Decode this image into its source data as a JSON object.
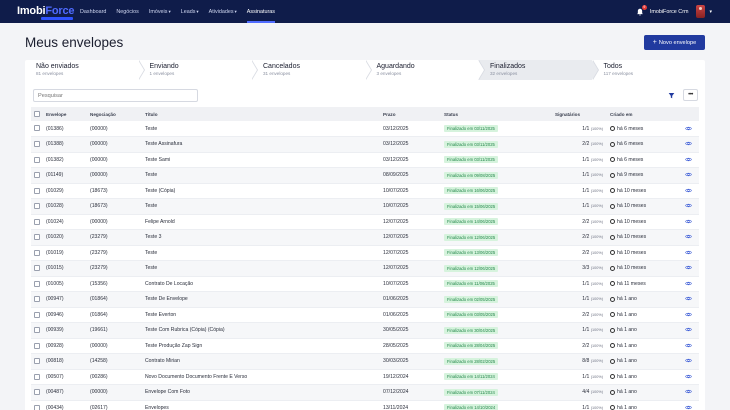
{
  "brand": {
    "name_a": "Imobi",
    "name_b": "Force"
  },
  "nav": [
    {
      "label": "Dashboard",
      "has_caret": false,
      "active": false
    },
    {
      "label": "Negócios",
      "has_caret": false,
      "active": false
    },
    {
      "label": "Imóveis",
      "has_caret": true,
      "active": false
    },
    {
      "label": "Leads",
      "has_caret": true,
      "active": false
    },
    {
      "label": "Atividades",
      "has_caret": true,
      "active": false
    },
    {
      "label": "Assinaturas",
      "has_caret": false,
      "active": true
    }
  ],
  "user": {
    "name": "ImobiForce Crm",
    "notification_count": "9"
  },
  "page": {
    "title": "Meus envelopes",
    "new_button": "Novo envelope"
  },
  "tabs": [
    {
      "label": "Não enviados",
      "count": "81 envelopes"
    },
    {
      "label": "Enviando",
      "count": "1 envelopes"
    },
    {
      "label": "Cancelados",
      "count": "31 envelopes"
    },
    {
      "label": "Aguardando",
      "count": "3 envelopes"
    },
    {
      "label": "Finalizados",
      "count": "32 envelopes"
    },
    {
      "label": "Todos",
      "count": "117 envelopes"
    }
  ],
  "active_tab": 4,
  "search": {
    "placeholder": "Pesquisar"
  },
  "more_label": "•••",
  "columns": [
    "Envelope",
    "Negociação",
    "Título",
    "Prazo",
    "Status",
    "Signatários",
    "Criado em"
  ],
  "rows": [
    {
      "envelope": "(01386)",
      "negociacao": "(00000)",
      "titulo": "Teste",
      "prazo": "03/12/2025",
      "status": "Finalizado em 03/11/2025",
      "sig": "1/1",
      "pct": "(100%)",
      "criado": "há 6 meses"
    },
    {
      "envelope": "(01388)",
      "negociacao": "(00000)",
      "titulo": "Teste Assinafura",
      "prazo": "03/12/2025",
      "status": "Finalizado em 03/11/2025",
      "sig": "2/2",
      "pct": "(100%)",
      "criado": "há 6 meses"
    },
    {
      "envelope": "(01382)",
      "negociacao": "(00000)",
      "titulo": "Teste Sami",
      "prazo": "03/12/2025",
      "status": "Finalizado em 03/11/2025",
      "sig": "1/1",
      "pct": "(100%)",
      "criado": "há 6 meses"
    },
    {
      "envelope": "(01149)",
      "negociacao": "(00000)",
      "titulo": "Teste",
      "prazo": "08/09/2025",
      "status": "Finalizado em 09/08/2025",
      "sig": "1/1",
      "pct": "(100%)",
      "criado": "há 9 meses"
    },
    {
      "envelope": "(01029)",
      "negociacao": "(18673)",
      "titulo": "Teste (Cópia)",
      "prazo": "10/07/2025",
      "status": "Finalizado em 16/06/2025",
      "sig": "1/1",
      "pct": "(100%)",
      "criado": "há 10 meses"
    },
    {
      "envelope": "(01028)",
      "negociacao": "(18673)",
      "titulo": "Teste",
      "prazo": "10/07/2025",
      "status": "Finalizado em 15/06/2025",
      "sig": "1/1",
      "pct": "(100%)",
      "criado": "há 10 meses"
    },
    {
      "envelope": "(01024)",
      "negociacao": "(00000)",
      "titulo": "Felipe Arnold",
      "prazo": "12/07/2025",
      "status": "Finalizado em 14/06/2025",
      "sig": "2/2",
      "pct": "(100%)",
      "criado": "há 10 meses"
    },
    {
      "envelope": "(01020)",
      "negociacao": "(23279)",
      "titulo": "Teste 3",
      "prazo": "12/07/2025",
      "status": "Finalizado em 12/06/2025",
      "sig": "2/2",
      "pct": "(100%)",
      "criado": "há 10 meses"
    },
    {
      "envelope": "(01019)",
      "negociacao": "(23279)",
      "titulo": "Teste",
      "prazo": "12/07/2025",
      "status": "Finalizado em 13/06/2025",
      "sig": "2/2",
      "pct": "(100%)",
      "criado": "há 10 meses"
    },
    {
      "envelope": "(01015)",
      "negociacao": "(23279)",
      "titulo": "Teste",
      "prazo": "12/07/2025",
      "status": "Finalizado em 12/06/2025",
      "sig": "3/3",
      "pct": "(100%)",
      "criado": "há 10 meses"
    },
    {
      "envelope": "(01005)",
      "negociacao": "(15356)",
      "titulo": "Contrato De Locação",
      "prazo": "10/07/2025",
      "status": "Finalizado em 11/06/2025",
      "sig": "1/1",
      "pct": "(100%)",
      "criado": "há 11 meses"
    },
    {
      "envelope": "(00947)",
      "negociacao": "(01864)",
      "titulo": "Teste De Envelope",
      "prazo": "01/06/2025",
      "status": "Finalizado em 02/05/2025",
      "sig": "1/1",
      "pct": "(100%)",
      "criado": "há 1 ano"
    },
    {
      "envelope": "(00946)",
      "negociacao": "(01864)",
      "titulo": "Teste Everton",
      "prazo": "01/06/2025",
      "status": "Finalizado em 03/05/2025",
      "sig": "2/2",
      "pct": "(100%)",
      "criado": "há 1 ano"
    },
    {
      "envelope": "(00939)",
      "negociacao": "(19661)",
      "titulo": "Teste Com Rubrica (Cópia) (Cópia)",
      "prazo": "30/05/2025",
      "status": "Finalizado em 30/04/2025",
      "sig": "1/1",
      "pct": "(100%)",
      "criado": "há 1 ano"
    },
    {
      "envelope": "(00928)",
      "negociacao": "(00000)",
      "titulo": "Teste Produção Zap Sign",
      "prazo": "28/05/2025",
      "status": "Finalizado em 28/04/2025",
      "sig": "2/2",
      "pct": "(100%)",
      "criado": "há 1 ano"
    },
    {
      "envelope": "(00818)",
      "negociacao": "(14258)",
      "titulo": "Contrato Mirian",
      "prazo": "30/03/2025",
      "status": "Finalizado em 28/02/2025",
      "sig": "8/8",
      "pct": "(100%)",
      "criado": "há 1 ano"
    },
    {
      "envelope": "(00507)",
      "negociacao": "(00286)",
      "titulo": "Novo Documento Documento Frente E Verso",
      "prazo": "19/12/2024",
      "status": "Finalizado em 14/11/2024",
      "sig": "1/1",
      "pct": "(100%)",
      "criado": "há 1 ano"
    },
    {
      "envelope": "(00487)",
      "negociacao": "(00000)",
      "titulo": "Envelope Com Foto",
      "prazo": "07/12/2024",
      "status": "Finalizado em 07/11/2024",
      "sig": "4/4",
      "pct": "(100%)",
      "criado": "há 1 ano"
    },
    {
      "envelope": "(00434)",
      "negociacao": "(02617)",
      "titulo": "Envelopes",
      "prazo": "13/11/2024",
      "status": "Finalizado em 14/10/2024",
      "sig": "1/1",
      "pct": "(100%)",
      "criado": "há 1 ano"
    }
  ]
}
